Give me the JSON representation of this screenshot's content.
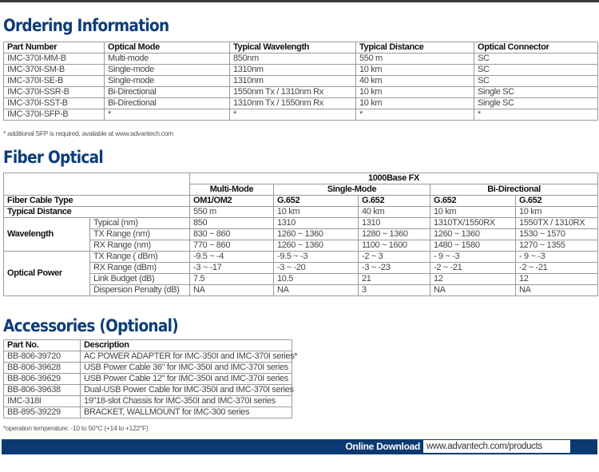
{
  "ordering": {
    "title": "Ordering Information",
    "headers": [
      "Part Number",
      "Optical Mode",
      "Typical Wavelength",
      "Typical Distance",
      "Optical Connector"
    ],
    "rows": [
      [
        "IMC-370I-MM-B",
        "Multi-mode",
        "850nm",
        "550 m",
        "SC"
      ],
      [
        "IMC-370I-SM-B",
        "Single-mode",
        "1310nm",
        "10 km",
        "SC"
      ],
      [
        "IMC-370I-SE-B",
        "Single-mode",
        "1310nm",
        "40 km",
        "SC"
      ],
      [
        "IMC-370I-SSR-B",
        "Bi-Directional",
        "1550nm Tx / 1310nm Rx",
        "10 km",
        " Single SC"
      ],
      [
        "IMC-370I-SST-B",
        "Bi-Directional",
        "1310nm Tx / 1550nm Rx",
        "10 km",
        " Single SC"
      ],
      [
        "IMC-370I-SFP-B",
        "*",
        "*",
        "*",
        "*"
      ]
    ],
    "footnote": "* additional SFP is required, available at www.advantech.com"
  },
  "fiber": {
    "title": "Fiber Optical",
    "group": "1000Base FX",
    "modes": [
      "Multi-Mode",
      "Single-Mode",
      "Bi-Directional"
    ],
    "cable_type": {
      "label": "Fiber Cable Type",
      "values": [
        "OM1/OM2",
        "G.652",
        "G.652",
        "G.652",
        "G.652"
      ]
    },
    "distance": {
      "label": "Typical Distance",
      "values": [
        "550 m",
        "10 km",
        "40 km",
        "10 km",
        "10 km"
      ]
    },
    "wavelength": {
      "label": "Wavelength",
      "rows": [
        {
          "label": "Typical (nm)",
          "values": [
            "850",
            "1310",
            "1310",
            "1310TX/1550RX",
            "1550TX / 1310RX"
          ]
        },
        {
          "label": "TX Range (nm)",
          "values": [
            "830 ~ 860",
            "1260 ~ 1360",
            "1280 ~ 1360",
            "1260 ~ 1360",
            "1530 ~ 1570"
          ]
        },
        {
          "label": "RX Range (nm)",
          "values": [
            "770 ~ 860",
            "1260 ~ 1360",
            "1100 ~ 1600",
            "1480 ~ 1580",
            "1270 ~ 1355"
          ]
        }
      ]
    },
    "power": {
      "label": "Optical Power",
      "rows": [
        {
          "label": "TX Range ( dBm)",
          "values": [
            "-9.5 ~ -4",
            "-9.5 ~ -3",
            "-2 ~ 3",
            "- 9 ~ -3",
            "- 9 ~ -3"
          ]
        },
        {
          "label": "RX Range (dBm)",
          "values": [
            "-3 ~ -17",
            "-3 ~ -20",
            "-3 ~ -23",
            "-2 ~ -21",
            "-2 ~ -21"
          ]
        },
        {
          "label": "Link Budget (dB)",
          "values": [
            "7.5",
            "10.5",
            "21",
            "12",
            "12"
          ]
        },
        {
          "label": "Dispersion Penalty (dB)",
          "values": [
            "NA",
            "NA",
            "3",
            "NA",
            "NA"
          ]
        }
      ]
    }
  },
  "accessories": {
    "title": "Accessories (Optional)",
    "headers": [
      "Part No.",
      "Description"
    ],
    "rows": [
      [
        "BB-806-39720",
        "AC POWER ADAPTER for IMC-350I and IMC-370I series*"
      ],
      [
        "BB-806-39628",
        "USB Power Cable 36\" for IMC-350I and IMC-370I series"
      ],
      [
        "BB-806-39629",
        "USB Power Cable 12\" for IMC-350I and IMC-370I series"
      ],
      [
        "BB-806-39638",
        "Dual-USB Power Cable for IMC-350I and IMC-370I series"
      ],
      [
        "IMC-318I",
        "19\"18-slot Chassis for IMC-350I and IMC-370I series"
      ],
      [
        "BB-895-39229",
        "BRACKET, WALLMOUNT for IMC-300 series"
      ]
    ],
    "footnote": "*operation temperature: -10 to 50°C (+14 to +122°F)"
  },
  "footer": {
    "label": "Online Download",
    "link": "www.advantech.com/products"
  },
  "colors": {
    "heading": "#0d3d78",
    "banner": "#0b3a72"
  }
}
